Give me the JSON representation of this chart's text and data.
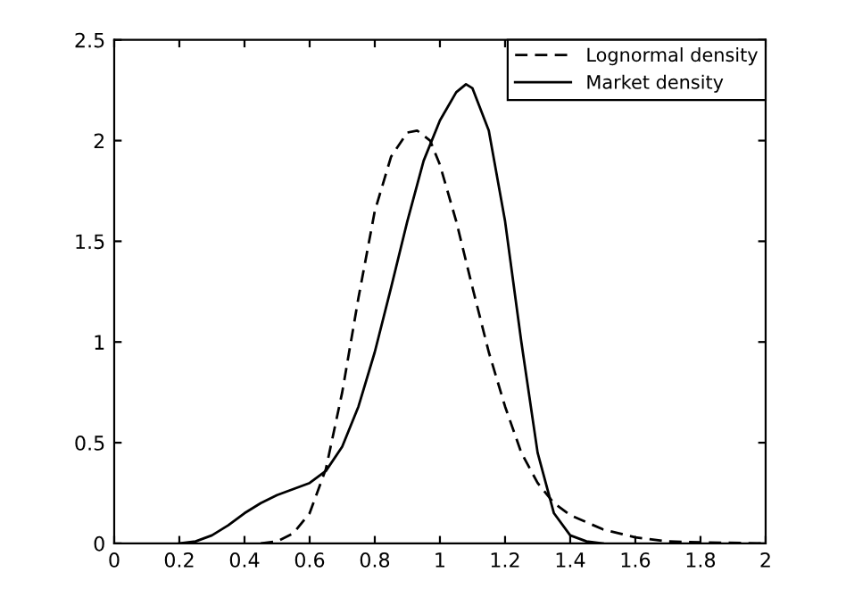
{
  "chart_data": {
    "type": "line",
    "xlim": [
      0,
      2
    ],
    "ylim": [
      0,
      2.5
    ],
    "xticks": [
      0,
      0.2,
      0.4,
      0.6,
      0.8,
      1,
      1.2,
      1.4,
      1.6,
      1.8,
      2
    ],
    "yticks": [
      0,
      0.5,
      1,
      1.5,
      2,
      2.5
    ],
    "grid": false,
    "legend": "top right",
    "marker": "none",
    "series": [
      {
        "name": "Lognormal density",
        "color": "#000000",
        "line_style": "dashed",
        "x": [
          0.45,
          0.5,
          0.55,
          0.6,
          0.65,
          0.7,
          0.75,
          0.8,
          0.85,
          0.9,
          0.93,
          0.97,
          1.0,
          1.05,
          1.1,
          1.15,
          1.2,
          1.25,
          1.3,
          1.35,
          1.4,
          1.5,
          1.6,
          1.7,
          1.8,
          2.0
        ],
        "values": [
          0,
          0.01,
          0.05,
          0.15,
          0.37,
          0.75,
          1.22,
          1.65,
          1.92,
          2.04,
          2.05,
          2.0,
          1.88,
          1.6,
          1.27,
          0.95,
          0.68,
          0.45,
          0.3,
          0.2,
          0.14,
          0.07,
          0.03,
          0.01,
          0.005,
          0
        ]
      },
      {
        "name": "Market density",
        "color": "#000000",
        "line_style": "solid",
        "x": [
          0.2,
          0.25,
          0.3,
          0.35,
          0.4,
          0.45,
          0.5,
          0.55,
          0.6,
          0.65,
          0.7,
          0.75,
          0.8,
          0.85,
          0.9,
          0.95,
          1.0,
          1.05,
          1.08,
          1.1,
          1.15,
          1.2,
          1.25,
          1.3,
          1.35,
          1.4,
          1.45,
          1.5
        ],
        "values": [
          0,
          0.01,
          0.04,
          0.09,
          0.15,
          0.2,
          0.24,
          0.27,
          0.3,
          0.36,
          0.48,
          0.68,
          0.95,
          1.27,
          1.6,
          1.9,
          2.1,
          2.24,
          2.28,
          2.26,
          2.05,
          1.6,
          1.0,
          0.45,
          0.15,
          0.04,
          0.01,
          0
        ]
      }
    ]
  }
}
